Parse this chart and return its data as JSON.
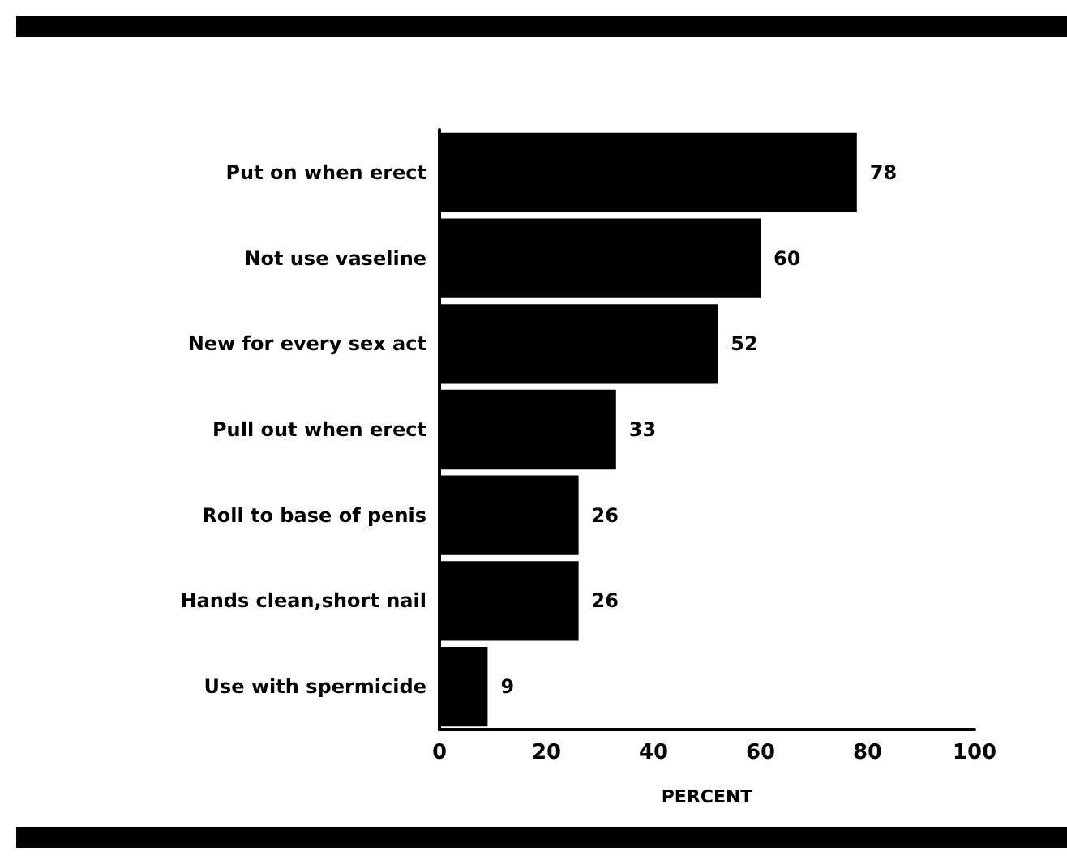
{
  "chart_data": {
    "type": "bar",
    "orientation": "horizontal",
    "xlabel": "PERCENT",
    "categories": [
      "Put on when erect",
      "Not use vaseline",
      "New for every sex act",
      "Pull out when erect",
      "Roll to base of penis",
      "Hands clean,short nail",
      "Use with spermicide"
    ],
    "values": [
      78,
      60,
      52,
      33,
      26,
      26,
      9
    ],
    "color": "#000000",
    "xlim": [
      0,
      100
    ],
    "xticks": [
      0,
      20,
      40,
      60,
      80,
      100
    ],
    "data_labels": true,
    "grid": false
  }
}
